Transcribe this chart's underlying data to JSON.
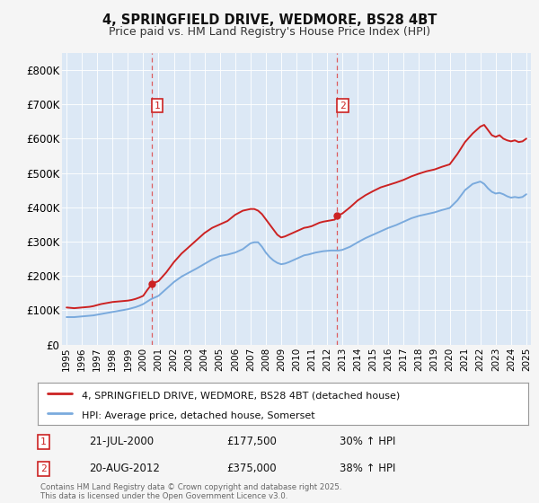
{
  "title": "4, SPRINGFIELD DRIVE, WEDMORE, BS28 4BT",
  "subtitle": "Price paid vs. HM Land Registry's House Price Index (HPI)",
  "background_color": "#f5f5f5",
  "plot_bg_color": "#dce8f5",
  "red_color": "#cc2222",
  "blue_color": "#7aaadd",
  "marker1_date": "21-JUL-2000",
  "marker1_price": 177500,
  "marker1_pct": "30% ↑ HPI",
  "marker2_date": "20-AUG-2012",
  "marker2_price": 375000,
  "marker2_pct": "38% ↑ HPI",
  "red_label": "4, SPRINGFIELD DRIVE, WEDMORE, BS28 4BT (detached house)",
  "blue_label": "HPI: Average price, detached house, Somerset",
  "footer": "Contains HM Land Registry data © Crown copyright and database right 2025.\nThis data is licensed under the Open Government Licence v3.0.",
  "ylim": [
    0,
    850000
  ],
  "yticks": [
    0,
    100000,
    200000,
    300000,
    400000,
    500000,
    600000,
    700000,
    800000
  ],
  "ytick_labels": [
    "£0",
    "£100K",
    "£200K",
    "£300K",
    "£400K",
    "£500K",
    "£600K",
    "£700K",
    "£800K"
  ],
  "red_x": [
    1995.0,
    1995.25,
    1995.5,
    1995.75,
    1996.0,
    1996.25,
    1996.5,
    1996.75,
    1997.0,
    1997.25,
    1997.5,
    1997.75,
    1998.0,
    1998.25,
    1998.5,
    1998.75,
    1999.0,
    1999.25,
    1999.5,
    1999.75,
    2000.0,
    2000.25,
    2000.583,
    2001.0,
    2001.5,
    2002.0,
    2002.5,
    2003.0,
    2003.5,
    2004.0,
    2004.5,
    2005.0,
    2005.5,
    2006.0,
    2006.5,
    2007.0,
    2007.25,
    2007.5,
    2007.75,
    2008.0,
    2008.25,
    2008.5,
    2008.75,
    2009.0,
    2009.25,
    2009.5,
    2009.75,
    2010.0,
    2010.25,
    2010.5,
    2010.75,
    2011.0,
    2011.25,
    2011.5,
    2011.75,
    2012.0,
    2012.25,
    2012.5,
    2012.667,
    2013.0,
    2013.5,
    2014.0,
    2014.5,
    2015.0,
    2015.5,
    2016.0,
    2016.5,
    2017.0,
    2017.5,
    2018.0,
    2018.5,
    2019.0,
    2019.5,
    2020.0,
    2020.5,
    2021.0,
    2021.5,
    2022.0,
    2022.25,
    2022.5,
    2022.75,
    2023.0,
    2023.25,
    2023.5,
    2023.75,
    2024.0,
    2024.25,
    2024.5,
    2024.75,
    2025.0
  ],
  "red_y": [
    108000,
    107000,
    106000,
    107000,
    108000,
    109000,
    110000,
    112000,
    115000,
    118000,
    120000,
    122000,
    124000,
    125000,
    126000,
    127000,
    128000,
    130000,
    133000,
    137000,
    142000,
    158000,
    177500,
    185000,
    210000,
    240000,
    265000,
    285000,
    305000,
    325000,
    340000,
    350000,
    360000,
    378000,
    390000,
    395000,
    395000,
    390000,
    380000,
    365000,
    350000,
    335000,
    320000,
    312000,
    315000,
    320000,
    325000,
    330000,
    335000,
    340000,
    342000,
    345000,
    350000,
    355000,
    358000,
    360000,
    362000,
    364000,
    375000,
    382000,
    400000,
    420000,
    435000,
    447000,
    458000,
    465000,
    472000,
    480000,
    490000,
    498000,
    505000,
    510000,
    518000,
    525000,
    555000,
    590000,
    615000,
    635000,
    640000,
    625000,
    610000,
    605000,
    610000,
    600000,
    595000,
    592000,
    595000,
    590000,
    592000,
    600000
  ],
  "blue_x": [
    1995.0,
    1995.25,
    1995.5,
    1995.75,
    1996.0,
    1996.25,
    1996.5,
    1996.75,
    1997.0,
    1997.25,
    1997.5,
    1997.75,
    1998.0,
    1998.25,
    1998.5,
    1998.75,
    1999.0,
    1999.25,
    1999.5,
    1999.75,
    2000.0,
    2000.25,
    2000.5,
    2001.0,
    2001.5,
    2002.0,
    2002.5,
    2003.0,
    2003.5,
    2004.0,
    2004.5,
    2005.0,
    2005.5,
    2006.0,
    2006.5,
    2007.0,
    2007.25,
    2007.5,
    2007.75,
    2008.0,
    2008.25,
    2008.5,
    2008.75,
    2009.0,
    2009.25,
    2009.5,
    2009.75,
    2010.0,
    2010.25,
    2010.5,
    2010.75,
    2011.0,
    2011.25,
    2011.5,
    2011.75,
    2012.0,
    2012.25,
    2012.5,
    2012.75,
    2013.0,
    2013.5,
    2014.0,
    2014.5,
    2015.0,
    2015.5,
    2016.0,
    2016.5,
    2017.0,
    2017.5,
    2018.0,
    2018.5,
    2019.0,
    2019.5,
    2020.0,
    2020.5,
    2021.0,
    2021.5,
    2022.0,
    2022.25,
    2022.5,
    2022.75,
    2023.0,
    2023.25,
    2023.5,
    2023.75,
    2024.0,
    2024.25,
    2024.5,
    2024.75,
    2025.0
  ],
  "blue_y": [
    80000,
    80000,
    80000,
    81000,
    82000,
    83000,
    84000,
    85000,
    87000,
    89000,
    91000,
    93000,
    95000,
    97000,
    99000,
    101000,
    103000,
    106000,
    109000,
    113000,
    118000,
    125000,
    132000,
    142000,
    162000,
    182000,
    198000,
    210000,
    222000,
    235000,
    248000,
    258000,
    262000,
    268000,
    278000,
    295000,
    298000,
    298000,
    285000,
    268000,
    255000,
    245000,
    238000,
    234000,
    236000,
    240000,
    245000,
    250000,
    255000,
    260000,
    262000,
    265000,
    268000,
    270000,
    272000,
    273000,
    274000,
    274000,
    274000,
    276000,
    285000,
    298000,
    310000,
    320000,
    330000,
    340000,
    348000,
    358000,
    368000,
    375000,
    380000,
    385000,
    392000,
    398000,
    420000,
    450000,
    468000,
    475000,
    468000,
    455000,
    445000,
    440000,
    442000,
    438000,
    432000,
    428000,
    430000,
    428000,
    430000,
    438000
  ],
  "marker1_x": 2000.583,
  "marker2_x": 2012.667,
  "xlim": [
    1994.7,
    2025.3
  ],
  "xticks": [
    1995,
    1996,
    1997,
    1998,
    1999,
    2000,
    2001,
    2002,
    2003,
    2004,
    2005,
    2006,
    2007,
    2008,
    2009,
    2010,
    2011,
    2012,
    2013,
    2014,
    2015,
    2016,
    2017,
    2018,
    2019,
    2020,
    2021,
    2022,
    2023,
    2024,
    2025
  ]
}
